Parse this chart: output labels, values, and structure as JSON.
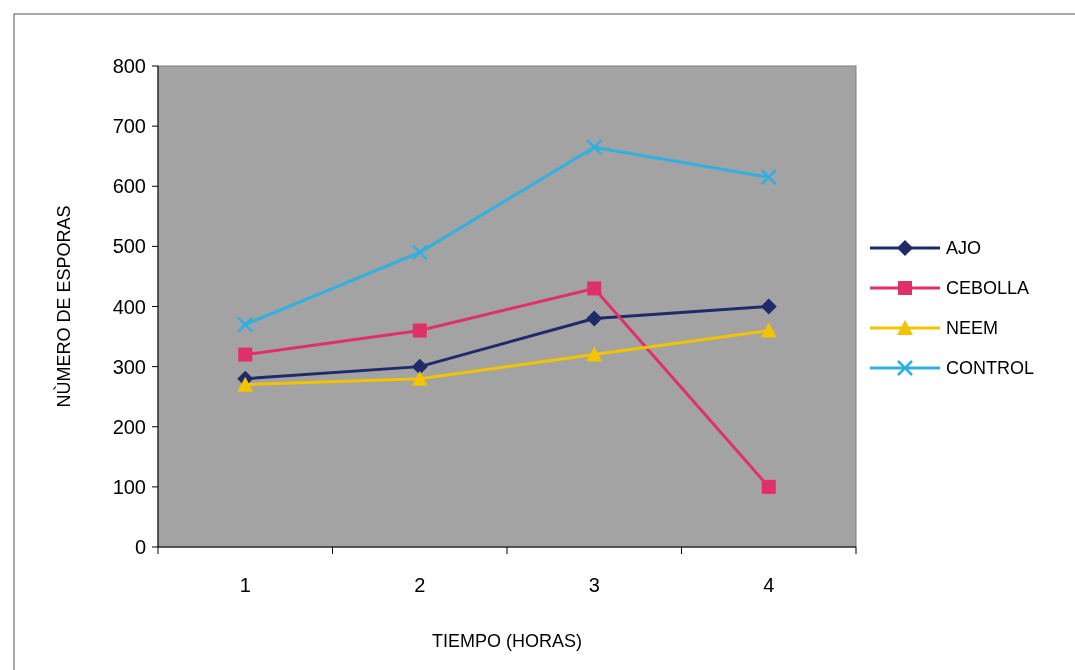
{
  "chart_data": {
    "type": "line",
    "xlabel": "TIEMPO (HORAS)",
    "ylabel": "NÙMERO DE ESPORAS",
    "categories": [
      "1",
      "2",
      "3",
      "4"
    ],
    "series": [
      {
        "name": "AJO",
        "color": "#1f2a6b",
        "marker": "diamond",
        "values": [
          280,
          300,
          380,
          400
        ]
      },
      {
        "name": "CEBOLLA",
        "color": "#e0306a",
        "marker": "square",
        "values": [
          320,
          360,
          430,
          100
        ]
      },
      {
        "name": "NEEM",
        "color": "#f2c400",
        "marker": "triangle",
        "values": [
          270,
          280,
          320,
          360
        ]
      },
      {
        "name": "CONTROL",
        "color": "#30b0e0",
        "marker": "cross",
        "values": [
          370,
          490,
          665,
          615
        ]
      }
    ],
    "ylim": [
      0,
      800
    ],
    "yticks": [
      0,
      100,
      200,
      300,
      400,
      500,
      600,
      700,
      800
    ],
    "grid": false,
    "legend": "right",
    "line_style": "solid"
  }
}
